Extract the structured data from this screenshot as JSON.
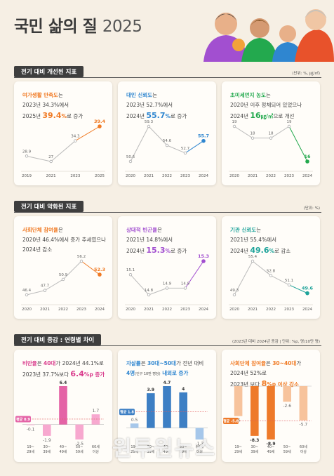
{
  "header": {
    "title_main": "국민 삶의 질",
    "title_year": "2025"
  },
  "colors": {
    "orange": "#f07a24",
    "blue": "#2f86d0",
    "green": "#23a94e",
    "pink": "#d93b8c",
    "purple": "#a24fd0",
    "teal": "#1ea39a",
    "dark": "#3e3e3e"
  },
  "sections": [
    {
      "label": "전기 대비 개선된 지표",
      "unit": "(단위: %, ㎍/㎥)"
    },
    {
      "label": "전기 대비 악화된 지표",
      "unit": "(단위: %)"
    },
    {
      "label": "전기 대비 증감 : 연령별 차이",
      "unit": "(2023년 대비 2024년 증감 | 단위: %p, 명/10만 명)"
    }
  ],
  "cards": [
    {
      "h1a": "여가생활 만족도",
      "h1b": "는",
      "h2": "2023년 34.3%에서",
      "h3a": "2025년 ",
      "h3big": "39.4",
      "h3unit": "%",
      "h3b": "로 증가"
    },
    {
      "h1a": "대인 신뢰도",
      "h1b": "는",
      "h2": "2023년 52.7%에서",
      "h3a": "2024년 ",
      "h3big": "55.7",
      "h3unit": "%",
      "h3b": "로 증가"
    },
    {
      "h1a": "초미세먼지 농도",
      "h1b": "는",
      "h2": "2020년 이후 정체되어 있었으나",
      "h3a": "2024년 ",
      "h3big": "16",
      "h3unit": "㎍/㎥",
      "h3b": "으로 개선"
    },
    {
      "h1a": "사회단체 참여율",
      "h1b": "은",
      "h2": "2020년 46.4%에서 증가 추세였으나",
      "h3a": "2024년 감소",
      "h3big": "",
      "h3unit": "",
      "h3b": ""
    },
    {
      "h1a": "상대적 빈곤율",
      "h1b": "은",
      "h2": "2021년 14.8%에서",
      "h3a": "2024년 ",
      "h3big": "15.3",
      "h3unit": "%",
      "h3b": "로 증가"
    },
    {
      "h1a": "기관 신뢰도",
      "h1b": "는",
      "h2": "2021년 55.4%에서",
      "h3a": "2024년 ",
      "h3big": "49.6",
      "h3unit": "%",
      "h3b": "로 감소"
    },
    {
      "h1a": "비만율",
      "h1b": "은 ",
      "h1c": "40대",
      "h1d": "가 2024년 44.1%로",
      "h2": "2023년 37.7%보다 ",
      "h2big": "6.4",
      "h2unit": "%p 증가"
    },
    {
      "h1a": "자살률",
      "h1b": "은 ",
      "h1c": "30대~50대",
      "h1d": "가 전년 대비",
      "h2a": "4명",
      "h2small": "(인구 10만 명당)",
      "h2b": " 내외로 증가"
    },
    {
      "h1a": "사회단체 참여율",
      "h1b": "은 ",
      "h1c": "30~40대",
      "h1d": "가",
      "h2": "2024년 52%로",
      "h3a": "2023년 보다 ",
      "h3big": "8",
      "h3unit": "%p 이상 감소"
    }
  ],
  "chart_data": [
    {
      "type": "line",
      "title": "여가생활 만족도",
      "x": [
        "2019",
        "2021",
        "2023",
        "2025"
      ],
      "values": [
        28.9,
        27.0,
        34.3,
        39.4
      ],
      "color": "#f07a24"
    },
    {
      "type": "line",
      "title": "대인 신뢰도",
      "x": [
        "2020",
        "2021",
        "2022",
        "2023",
        "2024"
      ],
      "values": [
        50.6,
        59.3,
        54.6,
        52.7,
        55.7
      ],
      "color": "#2f86d0"
    },
    {
      "type": "line",
      "title": "초미세먼지 농도",
      "x": [
        "2020",
        "2021",
        "2022",
        "2023",
        "2024"
      ],
      "values": [
        19,
        18,
        18,
        19,
        16
      ],
      "color": "#23a94e"
    },
    {
      "type": "line",
      "title": "사회단체 참여율",
      "x": [
        "2020",
        "2021",
        "2022",
        "2023",
        "2024"
      ],
      "values": [
        46.4,
        47.7,
        50.9,
        56.2,
        52.3
      ],
      "color": "#f07a24"
    },
    {
      "type": "line",
      "title": "상대적 빈곤율",
      "x": [
        "2020",
        "2021",
        "2022",
        "2023",
        "2024"
      ],
      "values": [
        15.1,
        14.8,
        14.9,
        14.9,
        15.3
      ],
      "color": "#a24fd0"
    },
    {
      "type": "line",
      "title": "기관 신뢰도",
      "x": [
        "2020",
        "2021",
        "2022",
        "2023",
        "2024"
      ],
      "values": [
        49.3,
        55.4,
        52.8,
        51.1,
        49.6
      ],
      "color": "#1ea39a"
    },
    {
      "type": "bar",
      "title": "비만율",
      "categories": [
        "19~\n29세",
        "30~\n39세",
        "40~\n49세",
        "50~\n59세",
        "60세\n이상"
      ],
      "values": [
        -0.1,
        -1.9,
        6.4,
        -2.5,
        1.7
      ],
      "avg": 0.9,
      "avg_label": "평균 0.9",
      "color": "#f7a8cf",
      "highlight": 2,
      "highlight_color": "#e463a6"
    },
    {
      "type": "bar",
      "title": "자살률",
      "categories": [
        "19~\n29세",
        "30~\n39세",
        "40~\n49세",
        "50~\n59세",
        "60세\n이상"
      ],
      "values": [
        0.5,
        3.9,
        4.7,
        4.0,
        -1.3
      ],
      "avg": 1.8,
      "avg_label": "평균 1.8",
      "color": "#a6c7ea",
      "highlight": [
        1,
        2,
        3
      ],
      "highlight_color": "#3d7fc4"
    },
    {
      "type": "bar",
      "title": "사회단체 참여율",
      "categories": [
        "19~\n29세",
        "30~\n39세",
        "40~\n49세",
        "50~\n59세",
        "60세\n이상"
      ],
      "values": [
        -5.0,
        -8.3,
        -8.9,
        -2.6,
        -5.7
      ],
      "avg": -5.8,
      "avg_label": "평균 -5.8",
      "color": "#f7c39c",
      "highlight": [
        1,
        2
      ],
      "highlight_color": "#ee7a2a"
    }
  ],
  "watermark": "원투원뉴스"
}
